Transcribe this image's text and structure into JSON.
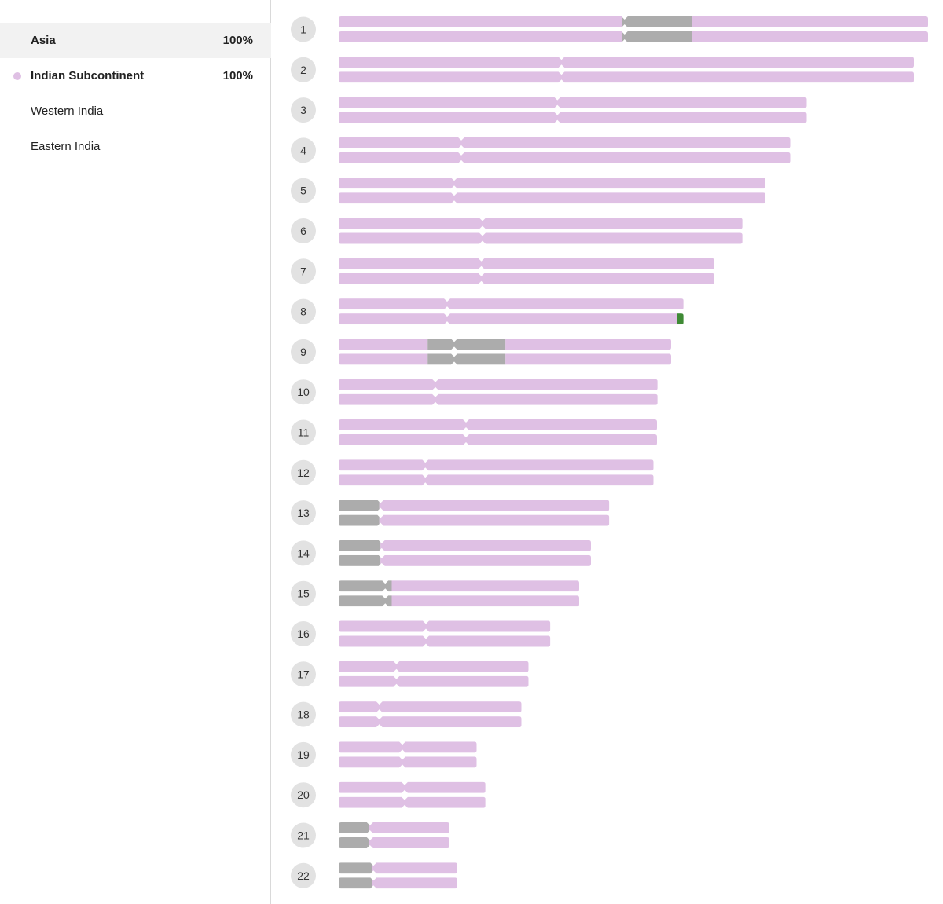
{
  "regions": [
    {
      "name": "Asia",
      "percent": "100%",
      "selected": true,
      "bold": true,
      "dot_color": ""
    },
    {
      "name": "Indian Subcontinent",
      "percent": "100%",
      "selected": false,
      "bold": true,
      "dot_color": "#dfc0e4"
    },
    {
      "name": "Western India",
      "percent": "",
      "selected": false,
      "bold": false,
      "dot_color": ""
    },
    {
      "name": "Eastern India",
      "percent": "",
      "selected": false,
      "bold": false,
      "dot_color": ""
    }
  ],
  "colors": {
    "ancestry": "#dfc0e4",
    "unassigned": "#acacac",
    "highlight": "#3f8a35",
    "badge_bg": "#e2e2e2",
    "badge_text": "#333333"
  },
  "chart_data": {
    "type": "chromosome-painting",
    "max_length": 100,
    "chromosomes": [
      {
        "label": "1",
        "length": 100,
        "centromere": 48.5,
        "segments": [
          [
            0,
            48,
            "ancestry"
          ],
          [
            48,
            60,
            "unassigned"
          ],
          [
            60,
            100,
            "ancestry"
          ]
        ]
      },
      {
        "label": "2",
        "length": 97.6,
        "centromere": 37.8,
        "segments": [
          [
            0,
            97.6,
            "ancestry"
          ]
        ]
      },
      {
        "label": "3",
        "length": 79.4,
        "centromere": 37.1,
        "segments": [
          [
            0,
            79.4,
            "ancestry"
          ]
        ]
      },
      {
        "label": "4",
        "length": 76.6,
        "centromere": 20.8,
        "segments": [
          [
            0,
            76.6,
            "ancestry"
          ]
        ]
      },
      {
        "label": "5",
        "length": 72.4,
        "centromere": 19.6,
        "segments": [
          [
            0,
            72.4,
            "ancestry"
          ]
        ]
      },
      {
        "label": "6",
        "length": 68.5,
        "centromere": 24.4,
        "segments": [
          [
            0,
            68.5,
            "ancestry"
          ]
        ]
      },
      {
        "label": "7",
        "length": 63.7,
        "centromere": 24.2,
        "segments": [
          [
            0,
            63.7,
            "ancestry"
          ]
        ]
      },
      {
        "label": "8",
        "length": 58.5,
        "centromere": 18.4,
        "segments": [
          [
            0,
            58.5,
            "ancestry"
          ]
        ],
        "segments_copy2": [
          [
            0,
            57.4,
            "ancestry"
          ],
          [
            57.4,
            58.5,
            "highlight"
          ]
        ]
      },
      {
        "label": "9",
        "length": 56.4,
        "centromere": 19.6,
        "segments": [
          [
            0,
            15.1,
            "ancestry"
          ],
          [
            15.1,
            28.3,
            "unassigned"
          ],
          [
            28.3,
            56.4,
            "ancestry"
          ]
        ]
      },
      {
        "label": "10",
        "length": 54.1,
        "centromere": 16.4,
        "segments": [
          [
            0,
            54.1,
            "ancestry"
          ]
        ]
      },
      {
        "label": "11",
        "length": 54.0,
        "centromere": 21.6,
        "segments": [
          [
            0,
            54.0,
            "ancestry"
          ]
        ]
      },
      {
        "label": "12",
        "length": 53.4,
        "centromere": 14.7,
        "segments": [
          [
            0,
            53.4,
            "ancestry"
          ]
        ]
      },
      {
        "label": "13",
        "length": 45.9,
        "centromere": 7.1,
        "segments": [
          [
            0,
            6.9,
            "unassigned"
          ],
          [
            6.9,
            45.9,
            "ancestry"
          ]
        ]
      },
      {
        "label": "14",
        "length": 42.8,
        "centromere": 7.3,
        "segments": [
          [
            0,
            7.1,
            "unassigned"
          ],
          [
            7.1,
            42.8,
            "ancestry"
          ]
        ]
      },
      {
        "label": "15",
        "length": 40.8,
        "centromere": 7.9,
        "segments": [
          [
            0,
            9.0,
            "unassigned"
          ],
          [
            9.0,
            40.8,
            "ancestry"
          ]
        ]
      },
      {
        "label": "16",
        "length": 35.9,
        "centromere": 14.8,
        "segments": [
          [
            0,
            35.9,
            "ancestry"
          ]
        ]
      },
      {
        "label": "17",
        "length": 32.2,
        "centromere": 9.8,
        "segments": [
          [
            0,
            32.2,
            "ancestry"
          ]
        ]
      },
      {
        "label": "18",
        "length": 31.0,
        "centromere": 6.9,
        "segments": [
          [
            0,
            31.0,
            "ancestry"
          ]
        ]
      },
      {
        "label": "19",
        "length": 23.4,
        "centromere": 10.8,
        "segments": [
          [
            0,
            23.4,
            "ancestry"
          ]
        ]
      },
      {
        "label": "20",
        "length": 24.9,
        "centromere": 11.2,
        "segments": [
          [
            0,
            24.9,
            "ancestry"
          ]
        ]
      },
      {
        "label": "21",
        "length": 18.8,
        "centromere": 5.3,
        "segments": [
          [
            0,
            5.1,
            "unassigned"
          ],
          [
            5.1,
            18.8,
            "ancestry"
          ]
        ]
      },
      {
        "label": "22",
        "length": 20.1,
        "centromere": 5.9,
        "segments": [
          [
            0,
            5.7,
            "unassigned"
          ],
          [
            5.7,
            20.1,
            "ancestry"
          ]
        ]
      }
    ]
  }
}
